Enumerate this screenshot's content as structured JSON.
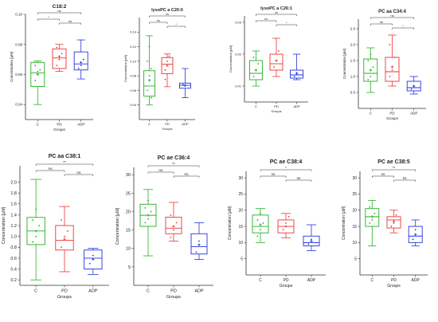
{
  "colors": {
    "C": "#22b022",
    "PD": "#ee3333",
    "ADP": "#2233dd",
    "axis": "#333333"
  },
  "groups": [
    "C",
    "PD",
    "ADP"
  ],
  "xlabel": "Groups",
  "ylabel": "Concentration [µM]",
  "chart_data": [
    {
      "type": "box",
      "title": "C18:2",
      "ylim": [
        0.03,
        0.1
      ],
      "yticks": [
        "0.10",
        "0.08",
        "0.06",
        "0.04"
      ],
      "ytick_values": [
        0.1,
        0.08,
        0.06,
        0.04
      ],
      "boxes": [
        {
          "group": "C",
          "min": 0.04,
          "q1": 0.052,
          "median": 0.061,
          "q3": 0.068,
          "max": 0.069,
          "mean": 0.06,
          "points": [
            0.056,
            0.06,
            0.063,
            0.066,
            0.062
          ]
        },
        {
          "group": "PD",
          "min": 0.062,
          "q1": 0.064,
          "median": 0.071,
          "q3": 0.077,
          "max": 0.08,
          "mean": 0.072,
          "points": [
            0.066,
            0.07,
            0.074,
            0.078
          ]
        },
        {
          "group": "ADP",
          "min": 0.057,
          "q1": 0.063,
          "median": 0.067,
          "q3": 0.075,
          "max": 0.083,
          "mean": 0.068,
          "points": [
            0.064,
            0.066,
            0.07
          ]
        }
      ],
      "sig": [
        {
          "from": 0,
          "to": 2,
          "label": "ns"
        },
        {
          "from": 0,
          "to": 1,
          "label": "*"
        },
        {
          "from": 1,
          "to": 2,
          "label": "ns"
        }
      ]
    },
    {
      "type": "box",
      "title": "lysoPC a C20:0",
      "ylim": [
        0.02,
        0.16
      ],
      "yticks": [
        "0.14",
        "0.12",
        "0.10",
        "0.08",
        "0.06",
        "0.04"
      ],
      "ytick_values": [
        0.14,
        0.12,
        0.1,
        0.08,
        0.06,
        0.04
      ],
      "boxes": [
        {
          "group": "C",
          "min": 0.04,
          "q1": 0.052,
          "median": 0.066,
          "q3": 0.087,
          "max": 0.135,
          "mean": 0.074,
          "points": [
            0.06,
            0.08,
            0.09,
            0.1,
            0.12,
            0.05
          ]
        },
        {
          "group": "PD",
          "min": 0.065,
          "q1": 0.083,
          "median": 0.096,
          "q3": 0.105,
          "max": 0.11,
          "mean": 0.094,
          "points": [
            0.088,
            0.1,
            0.107,
            0.075
          ]
        },
        {
          "group": "ADP",
          "min": 0.05,
          "q1": 0.063,
          "median": 0.067,
          "q3": 0.07,
          "max": 0.09,
          "mean": 0.067,
          "points": [
            0.068,
            0.066
          ]
        }
      ],
      "sig": [
        {
          "from": 0,
          "to": 2,
          "label": "ns"
        },
        {
          "from": 0,
          "to": 1,
          "label": "ns"
        },
        {
          "from": 1,
          "to": 2,
          "label": "*"
        }
      ]
    },
    {
      "type": "box",
      "title": "lysoPC a C26:1",
      "ylim": [
        0.005,
        0.032
      ],
      "yticks": [
        "0.03",
        "0.02",
        "0.01"
      ],
      "ytick_values": [
        0.03,
        0.02,
        0.01
      ],
      "boxes": [
        {
          "group": "C",
          "min": 0.01,
          "q1": 0.012,
          "median": 0.014,
          "q3": 0.018,
          "max": 0.021,
          "mean": 0.015,
          "points": [
            0.013,
            0.015,
            0.017,
            0.019
          ]
        },
        {
          "group": "PD",
          "min": 0.013,
          "q1": 0.015,
          "median": 0.017,
          "q3": 0.02,
          "max": 0.025,
          "mean": 0.018,
          "points": [
            0.016,
            0.018,
            0.021
          ]
        },
        {
          "group": "ADP",
          "min": 0.012,
          "q1": 0.0125,
          "median": 0.0135,
          "q3": 0.015,
          "max": 0.02,
          "mean": 0.014,
          "points": [
            0.013,
            0.014
          ]
        }
      ],
      "sig": [
        {
          "from": 0,
          "to": 2,
          "label": "ns"
        },
        {
          "from": 0,
          "to": 1,
          "label": "ns"
        },
        {
          "from": 1,
          "to": 2,
          "label": "*"
        }
      ]
    },
    {
      "type": "box",
      "title": "PC aa C34:4",
      "ylim": [
        0,
        2.8
      ],
      "yticks": [
        "2.5",
        "2.0",
        "1.5",
        "1.0",
        "0.5"
      ],
      "ytick_values": [
        2.5,
        2.0,
        1.5,
        1.0,
        0.5
      ],
      "boxes": [
        {
          "group": "C",
          "min": 0.5,
          "q1": 0.85,
          "median": 1.1,
          "q3": 1.55,
          "max": 1.9,
          "mean": 1.2,
          "points": [
            0.9,
            1.0,
            1.3,
            1.5,
            1.7
          ]
        },
        {
          "group": "PD",
          "min": 0.7,
          "q1": 0.85,
          "median": 1.15,
          "q3": 1.6,
          "max": 2.3,
          "mean": 1.3,
          "points": [
            1.0,
            1.2,
            1.6,
            2.0
          ]
        },
        {
          "group": "ADP",
          "min": 0.45,
          "q1": 0.55,
          "median": 0.65,
          "q3": 0.85,
          "max": 1.0,
          "mean": 0.7,
          "points": [
            0.6,
            0.7
          ]
        }
      ],
      "sig": [
        {
          "from": 0,
          "to": 2,
          "label": "ns"
        },
        {
          "from": 0,
          "to": 1,
          "label": "ns"
        },
        {
          "from": 1,
          "to": 2,
          "label": "*"
        }
      ]
    },
    {
      "type": "box",
      "title": "PC aa C38:1",
      "ylim": [
        0.1,
        2.3
      ],
      "yticks": [
        "2.0",
        "1.8",
        "1.6",
        "1.4",
        "1.2",
        "1.0",
        "0.8",
        "0.6",
        "0.4",
        "0.2"
      ],
      "ytick_values": [
        2.0,
        1.8,
        1.6,
        1.4,
        1.2,
        1.0,
        0.8,
        0.6,
        0.4,
        0.2
      ],
      "boxes": [
        {
          "group": "C",
          "min": 0.2,
          "q1": 0.85,
          "median": 1.1,
          "q3": 1.35,
          "max": 2.05,
          "mean": 1.1,
          "points": [
            0.9,
            1.0,
            1.2,
            1.3,
            1.5
          ]
        },
        {
          "group": "PD",
          "min": 0.35,
          "q1": 0.75,
          "median": 0.93,
          "q3": 1.2,
          "max": 1.55,
          "mean": 0.95,
          "points": [
            0.8,
            1.0,
            1.1,
            1.3
          ]
        },
        {
          "group": "ADP",
          "min": 0.3,
          "q1": 0.4,
          "median": 0.6,
          "q3": 0.75,
          "max": 0.78,
          "mean": 0.58,
          "points": [
            0.5,
            0.65
          ]
        }
      ],
      "sig": [
        {
          "from": 0,
          "to": 2,
          "label": "**"
        },
        {
          "from": 0,
          "to": 1,
          "label": "ns"
        },
        {
          "from": 1,
          "to": 2,
          "label": "ns"
        }
      ]
    },
    {
      "type": "box",
      "title": "PC ae C36:4",
      "ylim": [
        0,
        32
      ],
      "yticks": [
        "30",
        "25",
        "20",
        "15",
        "10",
        "5"
      ],
      "ytick_values": [
        30,
        25,
        20,
        15,
        10,
        5
      ],
      "boxes": [
        {
          "group": "C",
          "min": 8,
          "q1": 16,
          "median": 19,
          "q3": 22,
          "max": 26,
          "mean": 19,
          "points": [
            17,
            18,
            20,
            21,
            23
          ]
        },
        {
          "group": "PD",
          "min": 12,
          "q1": 14,
          "median": 15.5,
          "q3": 18.5,
          "max": 22.5,
          "mean": 16,
          "points": [
            13,
            15,
            17,
            19
          ]
        },
        {
          "group": "ADP",
          "min": 7,
          "q1": 8.5,
          "median": 10.5,
          "q3": 14,
          "max": 17,
          "mean": 11,
          "points": [
            9,
            12
          ]
        }
      ],
      "sig": [
        {
          "from": 0,
          "to": 2,
          "label": "**"
        },
        {
          "from": 0,
          "to": 1,
          "label": "ns"
        },
        {
          "from": 1,
          "to": 2,
          "label": "ns"
        }
      ]
    },
    {
      "type": "box",
      "title": "PC ae C38:4",
      "ylim": [
        0,
        32
      ],
      "yticks": [
        "30",
        "25",
        "20",
        "15",
        "10",
        "5"
      ],
      "ytick_values": [
        30,
        25,
        20,
        15,
        10,
        5
      ],
      "boxes": [
        {
          "group": "C",
          "min": 10,
          "q1": 13,
          "median": 15,
          "q3": 18.5,
          "max": 20.5,
          "mean": 15.5,
          "points": [
            12,
            14,
            16,
            17,
            19
          ]
        },
        {
          "group": "PD",
          "min": 11.5,
          "q1": 13,
          "median": 15,
          "q3": 17,
          "max": 19,
          "mean": 15,
          "points": [
            14,
            16,
            18
          ]
        },
        {
          "group": "ADP",
          "min": 7.5,
          "q1": 9,
          "median": 10,
          "q3": 12,
          "max": 15.5,
          "mean": 10.5,
          "points": [
            9.5,
            11
          ]
        }
      ],
      "sig": [
        {
          "from": 0,
          "to": 2,
          "label": "*"
        },
        {
          "from": 0,
          "to": 1,
          "label": "ns"
        },
        {
          "from": 1,
          "to": 2,
          "label": "ns"
        }
      ]
    },
    {
      "type": "box",
      "title": "PC ae C38:5",
      "ylim": [
        0,
        32
      ],
      "yticks": [
        "30",
        "25",
        "20",
        "15",
        "10",
        "5"
      ],
      "ytick_values": [
        30,
        25,
        20,
        15,
        10,
        5
      ],
      "boxes": [
        {
          "group": "C",
          "min": 9,
          "q1": 15,
          "median": 18,
          "q3": 20.5,
          "max": 23,
          "mean": 18,
          "points": [
            16,
            17,
            19,
            21
          ]
        },
        {
          "group": "PD",
          "min": 13,
          "q1": 14.5,
          "median": 17,
          "q3": 18,
          "max": 20,
          "mean": 16.5,
          "points": [
            15,
            16,
            18.5
          ]
        },
        {
          "group": "ADP",
          "min": 9,
          "q1": 10,
          "median": 12,
          "q3": 15,
          "max": 17,
          "mean": 12.5,
          "points": [
            11,
            14
          ]
        }
      ],
      "sig": [
        {
          "from": 0,
          "to": 2,
          "label": "**"
        },
        {
          "from": 0,
          "to": 1,
          "label": "ns"
        },
        {
          "from": 1,
          "to": 2,
          "label": "ns"
        }
      ]
    }
  ]
}
